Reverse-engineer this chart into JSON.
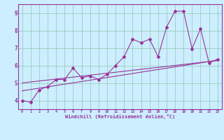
{
  "xlabel": "Windchill (Refroidissement éolien,°C)",
  "bg_color": "#cceeff",
  "line_color": "#993399",
  "grid_color": "#99ccbb",
  "xlim": [
    -0.5,
    23.5
  ],
  "ylim": [
    3.5,
    9.5
  ],
  "yticks": [
    4,
    5,
    6,
    7,
    8,
    9
  ],
  "xticks": [
    0,
    1,
    2,
    3,
    4,
    5,
    6,
    7,
    8,
    9,
    10,
    11,
    12,
    13,
    14,
    15,
    16,
    17,
    18,
    19,
    20,
    21,
    22,
    23
  ],
  "series": [
    [
      0,
      4.0
    ],
    [
      1,
      3.9
    ],
    [
      2,
      4.6
    ],
    [
      3,
      4.8
    ],
    [
      4,
      5.2
    ],
    [
      5,
      5.2
    ],
    [
      6,
      5.85
    ],
    [
      7,
      5.3
    ],
    [
      8,
      5.4
    ],
    [
      9,
      5.2
    ],
    [
      10,
      5.5
    ],
    [
      11,
      6.0
    ],
    [
      12,
      6.5
    ],
    [
      13,
      7.5
    ],
    [
      14,
      7.3
    ],
    [
      15,
      7.5
    ],
    [
      16,
      6.5
    ],
    [
      17,
      8.2
    ],
    [
      18,
      9.1
    ],
    [
      19,
      9.1
    ],
    [
      20,
      6.95
    ],
    [
      21,
      8.1
    ],
    [
      22,
      6.15
    ],
    [
      23,
      6.35
    ]
  ],
  "regression_line": [
    [
      0,
      4.55
    ],
    [
      23,
      6.3
    ]
  ],
  "regression_line2": [
    [
      0,
      5.0
    ],
    [
      23,
      6.28
    ]
  ]
}
